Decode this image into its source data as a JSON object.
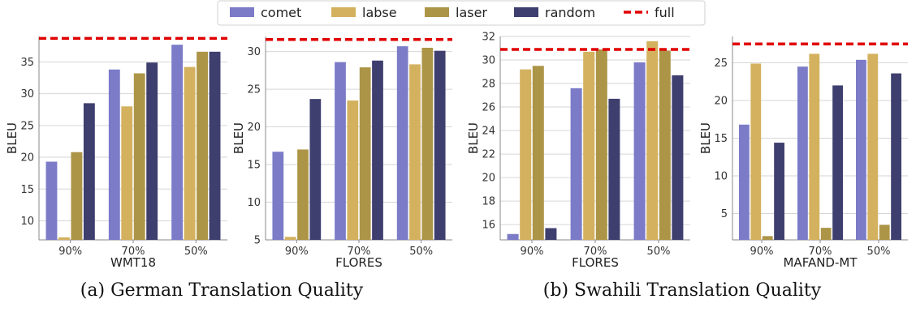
{
  "legend": [
    {
      "key": "comet",
      "label": "comet",
      "kind": "bar"
    },
    {
      "key": "labse",
      "label": "labse",
      "kind": "bar"
    },
    {
      "key": "laser",
      "label": "laser",
      "kind": "bar"
    },
    {
      "key": "random",
      "label": "random",
      "kind": "bar"
    },
    {
      "key": "full",
      "label": "full",
      "kind": "dashed-line"
    }
  ],
  "colors": {
    "comet": "#7b7bc8",
    "labse": "#d4b15e",
    "laser": "#ad9548",
    "random": "#3e3f6e",
    "full": "#e00000"
  },
  "captions": {
    "a": "(a) German Translation Quality",
    "b": "(b) Swahili Translation Quality"
  },
  "chart_data": [
    {
      "type": "bar",
      "categories": [
        "90%",
        "70%",
        "50%"
      ],
      "xlabel": "WMT18",
      "ylabel": "BLEU",
      "ylim": [
        7,
        39
      ],
      "yticks": [
        10,
        15,
        20,
        25,
        30,
        35
      ],
      "grid": true,
      "series": [
        {
          "name": "comet",
          "values": [
            19.3,
            33.8,
            37.7
          ]
        },
        {
          "name": "labse",
          "values": [
            7.4,
            28.0,
            34.2
          ]
        },
        {
          "name": "laser",
          "values": [
            20.8,
            33.2,
            36.6
          ]
        },
        {
          "name": "random",
          "values": [
            28.5,
            34.9,
            36.6
          ]
        }
      ],
      "reference": {
        "name": "full",
        "value": 38.7
      }
    },
    {
      "type": "bar",
      "categories": [
        "90%",
        "70%",
        "50%"
      ],
      "xlabel": "FLORES",
      "ylabel": "BLEU",
      "ylim": [
        5,
        32
      ],
      "yticks": [
        5,
        10,
        15,
        20,
        25,
        30
      ],
      "grid": true,
      "series": [
        {
          "name": "comet",
          "values": [
            16.7,
            28.6,
            30.7
          ]
        },
        {
          "name": "labse",
          "values": [
            5.4,
            23.5,
            28.3
          ]
        },
        {
          "name": "laser",
          "values": [
            17.0,
            27.9,
            30.5
          ]
        },
        {
          "name": "random",
          "values": [
            23.7,
            28.8,
            30.1
          ]
        }
      ],
      "reference": {
        "name": "full",
        "value": 31.6
      }
    },
    {
      "type": "bar",
      "categories": [
        "90%",
        "70%",
        "50%"
      ],
      "xlabel": "FLORES",
      "ylabel": "BLEU",
      "ylim": [
        14.7,
        32
      ],
      "yticks": [
        16,
        18,
        20,
        22,
        24,
        26,
        28,
        30,
        32
      ],
      "grid": true,
      "series": [
        {
          "name": "comet",
          "values": [
            15.2,
            27.6,
            29.8
          ]
        },
        {
          "name": "labse",
          "values": [
            29.2,
            30.7,
            31.6
          ]
        },
        {
          "name": "laser",
          "values": [
            29.5,
            30.9,
            30.8
          ]
        },
        {
          "name": "random",
          "values": [
            15.7,
            26.7,
            28.7
          ]
        }
      ],
      "reference": {
        "name": "full",
        "value": 30.9
      }
    },
    {
      "type": "bar",
      "categories": [
        "90%",
        "70%",
        "50%"
      ],
      "xlabel": "MAFAND-MT",
      "ylabel": "BLEU",
      "ylim": [
        1.5,
        28.5
      ],
      "yticks": [
        5,
        10,
        15,
        20,
        25
      ],
      "grid": true,
      "series": [
        {
          "name": "comet",
          "values": [
            16.8,
            24.5,
            25.4
          ]
        },
        {
          "name": "labse",
          "values": [
            24.9,
            26.2,
            26.2
          ]
        },
        {
          "name": "laser",
          "values": [
            2.0,
            3.1,
            3.5
          ]
        },
        {
          "name": "random",
          "values": [
            14.4,
            22.0,
            23.6
          ]
        }
      ],
      "reference": {
        "name": "full",
        "value": 27.5
      }
    }
  ]
}
